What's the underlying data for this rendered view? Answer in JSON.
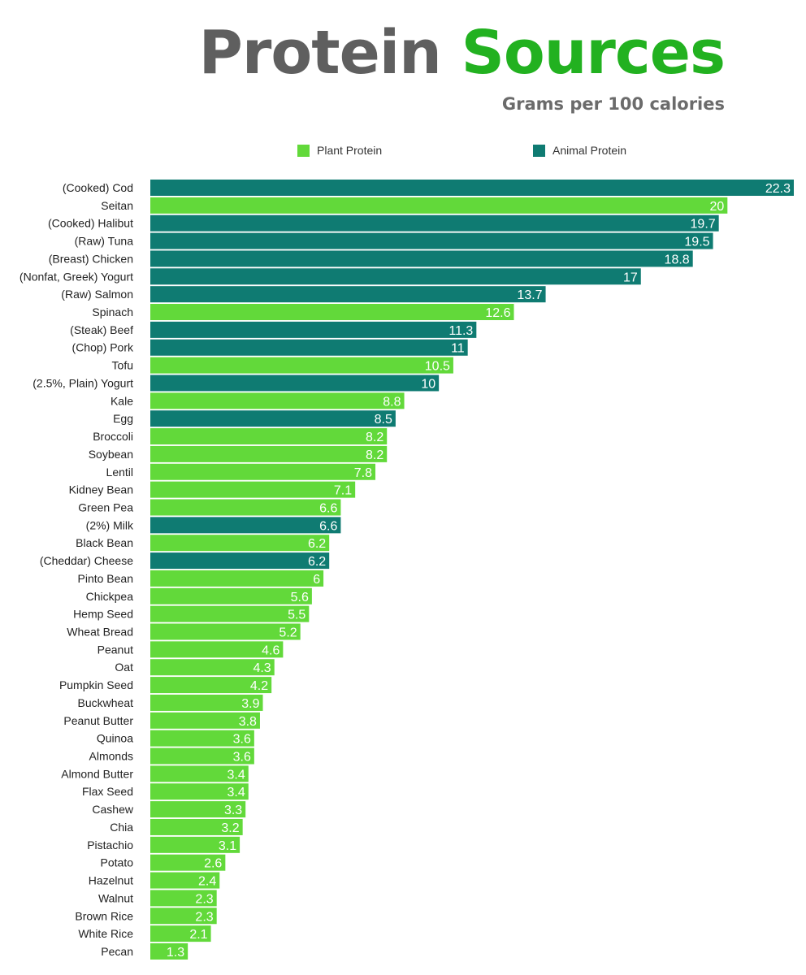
{
  "title_part1": "Protein",
  "title_part2": "Sources",
  "subtitle": "Grams per 100 calories",
  "colors": {
    "plant": "#62d93a",
    "animal": "#0f7b72",
    "title_gray": "#5f5f5f",
    "title_green": "#22b120"
  },
  "legend": {
    "plant": "Plant Protein",
    "animal": "Animal Protein"
  },
  "chart_data": {
    "type": "bar",
    "orientation": "horizontal",
    "title": "Protein Sources",
    "subtitle": "Grams per 100 calories",
    "legend_position": "top",
    "grid": false,
    "xlim": [
      0,
      22.3
    ],
    "categories": [
      "(Cooked) Cod",
      "Seitan",
      "(Cooked) Halibut",
      "(Raw) Tuna",
      "(Breast) Chicken",
      "(Nonfat, Greek) Yogurt",
      "(Raw) Salmon",
      "Spinach",
      "(Steak) Beef",
      "(Chop) Pork",
      "Tofu",
      "(2.5%, Plain) Yogurt",
      "Kale",
      "Egg",
      "Broccoli",
      "Soybean",
      "Lentil",
      "Kidney Bean",
      "Green Pea",
      "(2%) Milk",
      "Black Bean",
      "(Cheddar) Cheese",
      "Pinto Bean",
      "Chickpea",
      "Hemp Seed",
      "Wheat Bread",
      "Peanut",
      "Oat",
      "Pumpkin Seed",
      "Buckwheat",
      "Peanut Butter",
      "Quinoa",
      "Almonds",
      "Almond Butter",
      "Flax Seed",
      "Cashew",
      "Chia",
      "Pistachio",
      "Potato",
      "Hazelnut",
      "Walnut",
      "Brown Rice",
      "White Rice",
      "Pecan"
    ],
    "values": [
      22.3,
      20,
      19.7,
      19.5,
      18.8,
      17,
      13.7,
      12.6,
      11.3,
      11,
      10.5,
      10,
      8.8,
      8.5,
      8.2,
      8.2,
      7.8,
      7.1,
      6.6,
      6.6,
      6.2,
      6.2,
      6,
      5.6,
      5.5,
      5.2,
      4.6,
      4.3,
      4.2,
      3.9,
      3.8,
      3.6,
      3.6,
      3.4,
      3.4,
      3.3,
      3.2,
      3.1,
      2.6,
      2.4,
      2.3,
      2.3,
      2.1,
      1.3
    ],
    "labels": [
      "22.3",
      "20",
      "19.7",
      "19.5",
      "18.8",
      "17",
      "13.7",
      "12.6",
      "11.3",
      "11",
      "10.5",
      "10",
      "8.8",
      "8.5",
      "8.2",
      "8.2",
      "7.8",
      "7.1",
      "6.6",
      "6.6",
      "6.2",
      "6.2",
      "6",
      "5.6",
      "5.5",
      "5.2",
      "4.6",
      "4.3",
      "4.2",
      "3.9",
      "3.8",
      "3.6",
      "3.6",
      "3.4",
      "3.4",
      "3.3",
      "3.2",
      "3.1",
      "2.6",
      "2.4",
      "2.3",
      "2.3",
      "2.1",
      "1.3"
    ],
    "groups": [
      "animal",
      "plant",
      "animal",
      "animal",
      "animal",
      "animal",
      "animal",
      "plant",
      "animal",
      "animal",
      "plant",
      "animal",
      "plant",
      "animal",
      "plant",
      "plant",
      "plant",
      "plant",
      "plant",
      "animal",
      "plant",
      "animal",
      "plant",
      "plant",
      "plant",
      "plant",
      "plant",
      "plant",
      "plant",
      "plant",
      "plant",
      "plant",
      "plant",
      "plant",
      "plant",
      "plant",
      "plant",
      "plant",
      "plant",
      "plant",
      "plant",
      "plant",
      "plant",
      "plant"
    ]
  }
}
